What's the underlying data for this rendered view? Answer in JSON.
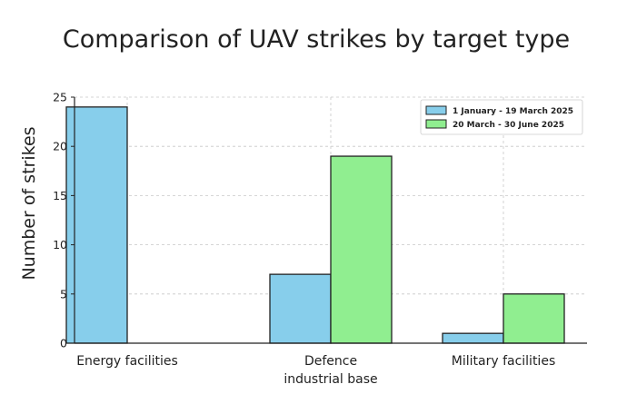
{
  "chart_data": {
    "type": "bar",
    "title": "Comparison of UAV strikes by target type",
    "xlabel": "",
    "ylabel": "Number of strikes",
    "ylim": [
      0,
      25
    ],
    "yticks": [
      0,
      5,
      10,
      15,
      20,
      25
    ],
    "categories": [
      [
        "Energy facilities"
      ],
      [
        "Defence",
        "industrial base"
      ],
      [
        "Military facilities"
      ]
    ],
    "series": [
      {
        "name": "1 January - 19 March 2025",
        "color": "#87ceeb",
        "values": [
          24,
          7,
          1
        ]
      },
      {
        "name": "20 March - 30 June 2025",
        "color": "#90ee90",
        "values": [
          0,
          19,
          5
        ]
      }
    ],
    "grid": true,
    "legend_position": "top-right"
  }
}
